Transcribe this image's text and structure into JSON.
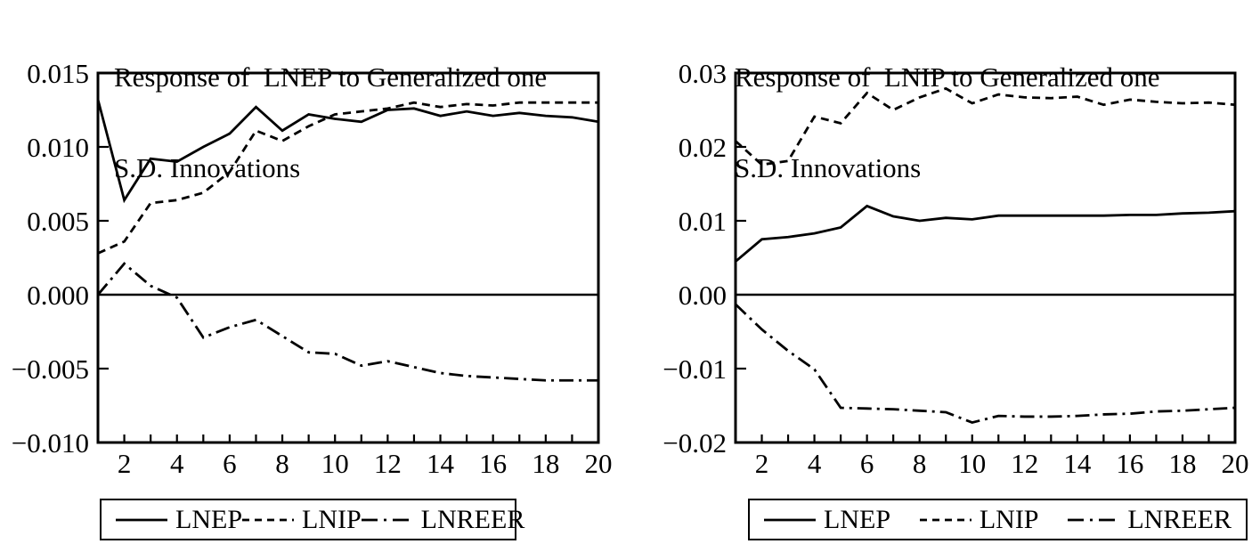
{
  "figure": {
    "background": "#ffffff",
    "line_color": "#000000"
  },
  "chart_data": [
    {
      "type": "line",
      "name": "response-of-lnep",
      "title": "Response of  LNEP to Generalized one S.D. Innovations",
      "title_line1": "Response of  LNEP to Generalized one",
      "title_line2": "S.D. Innovations",
      "x": [
        1,
        2,
        3,
        4,
        5,
        6,
        7,
        8,
        9,
        10,
        11,
        12,
        13,
        14,
        15,
        16,
        17,
        18,
        19,
        20
      ],
      "x_tick_labels": [
        "2",
        "4",
        "6",
        "8",
        "10",
        "12",
        "14",
        "16",
        "18",
        "20"
      ],
      "xlabel": "",
      "ylabel": "",
      "ylim": [
        -0.01,
        0.015
      ],
      "y_ticks": [
        {
          "value": 0.015,
          "label": "0.015"
        },
        {
          "value": 0.01,
          "label": "0.010"
        },
        {
          "value": 0.005,
          "label": "0.005"
        },
        {
          "value": 0.0,
          "label": "0.000"
        },
        {
          "value": -0.005,
          "label": "−0.005"
        },
        {
          "value": -0.01,
          "label": "−0.010"
        }
      ],
      "zero_line": true,
      "grid": false,
      "legend_position": "bottom",
      "series": [
        {
          "name": "LNEP",
          "style": "solid",
          "color": "#000000",
          "values": [
            0.0132,
            0.0064,
            0.0092,
            0.009,
            0.01,
            0.0109,
            0.0127,
            0.0111,
            0.0122,
            0.0119,
            0.0117,
            0.0125,
            0.0126,
            0.0121,
            0.0124,
            0.0121,
            0.0123,
            0.0121,
            0.012,
            0.0117
          ]
        },
        {
          "name": "LNIP",
          "style": "dashed",
          "color": "#000000",
          "values": [
            0.0028,
            0.0036,
            0.0062,
            0.0064,
            0.0069,
            0.0083,
            0.0111,
            0.0104,
            0.0114,
            0.0122,
            0.0124,
            0.0126,
            0.013,
            0.0127,
            0.0129,
            0.0128,
            0.013,
            0.013,
            0.013,
            0.013
          ]
        },
        {
          "name": "LNREER",
          "style": "dashdot",
          "color": "#000000",
          "values": [
            0.0,
            0.0021,
            0.0006,
            -0.0002,
            -0.0029,
            -0.0022,
            -0.0017,
            -0.0028,
            -0.0039,
            -0.004,
            -0.0048,
            -0.0045,
            -0.0049,
            -0.0053,
            -0.0055,
            -0.0056,
            -0.0057,
            -0.0058,
            -0.0058,
            -0.0058
          ]
        }
      ]
    },
    {
      "type": "line",
      "name": "response-of-lnip",
      "title": "Response of  LNIP to Generalized one S.D. Innovations",
      "title_line1": "Response of  LNIP to Generalized one",
      "title_line2": "S.D. Innovations",
      "x": [
        1,
        2,
        3,
        4,
        5,
        6,
        7,
        8,
        9,
        10,
        11,
        12,
        13,
        14,
        15,
        16,
        17,
        18,
        19,
        20
      ],
      "x_tick_labels": [
        "2",
        "4",
        "6",
        "8",
        "10",
        "12",
        "14",
        "16",
        "18",
        "20"
      ],
      "xlabel": "",
      "ylabel": "",
      "ylim": [
        -0.02,
        0.03
      ],
      "y_ticks": [
        {
          "value": 0.03,
          "label": "0.03"
        },
        {
          "value": 0.02,
          "label": "0.02"
        },
        {
          "value": 0.01,
          "label": "0.01"
        },
        {
          "value": 0.0,
          "label": "0.00"
        },
        {
          "value": -0.01,
          "label": "−0.01"
        },
        {
          "value": -0.02,
          "label": "−0.02"
        }
      ],
      "zero_line": true,
      "grid": false,
      "legend_position": "bottom",
      "series": [
        {
          "name": "LNEP",
          "style": "solid",
          "color": "#000000",
          "values": [
            0.0045,
            0.0075,
            0.0078,
            0.0083,
            0.0091,
            0.012,
            0.0106,
            0.01,
            0.0104,
            0.0102,
            0.0107,
            0.0107,
            0.0107,
            0.0107,
            0.0107,
            0.0108,
            0.0108,
            0.011,
            0.0111,
            0.0113
          ]
        },
        {
          "name": "LNIP",
          "style": "dashed",
          "color": "#000000",
          "values": [
            0.0208,
            0.0176,
            0.0181,
            0.0241,
            0.0232,
            0.0273,
            0.025,
            0.0267,
            0.0279,
            0.0259,
            0.0271,
            0.0267,
            0.0266,
            0.0268,
            0.0257,
            0.0264,
            0.0261,
            0.0259,
            0.026,
            0.0257
          ]
        },
        {
          "name": "LNREER",
          "style": "dashdot",
          "color": "#000000",
          "values": [
            -0.0013,
            -0.0047,
            -0.0076,
            -0.0101,
            -0.0153,
            -0.0154,
            -0.0155,
            -0.0157,
            -0.0159,
            -0.0173,
            -0.0164,
            -0.0165,
            -0.0165,
            -0.0164,
            -0.0162,
            -0.0161,
            -0.0158,
            -0.0157,
            -0.0155,
            -0.0153
          ]
        }
      ]
    }
  ],
  "legend": {
    "entries": [
      "LNEP",
      "LNIP",
      "LNREER"
    ]
  }
}
